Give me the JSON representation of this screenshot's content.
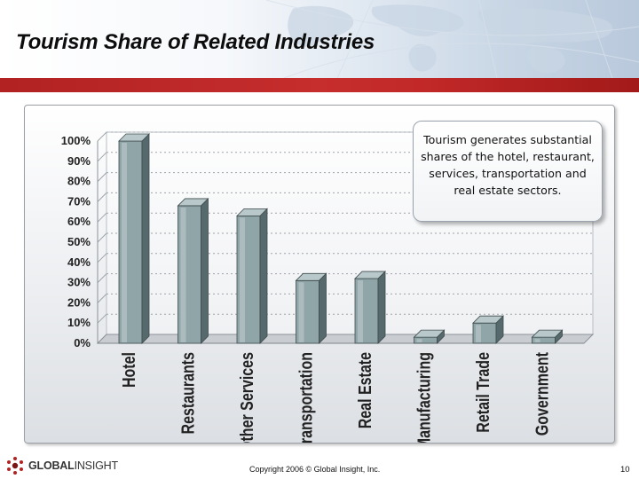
{
  "header": {
    "title": "Tourism Share of Related Industries"
  },
  "callout": {
    "text": "Tourism generates substantial shares of the hotel, restaurant, services, transportation and real estate sectors."
  },
  "footer": {
    "logo_bold": "GLOBAL",
    "logo_light": "INSIGHT",
    "copyright": "Copyright 2006 © Global Insight, Inc.",
    "page_number": "10"
  },
  "colors": {
    "accent_red": "#b22222",
    "bar_fill": "#8fa5a8",
    "bar_dark": "#56696c"
  },
  "chart_data": {
    "type": "bar",
    "categories": [
      "Hotel",
      "Restaurants",
      "Other Services",
      "Transportation",
      "Real Estate",
      "Manufacturing",
      "Retail Trade",
      "Government"
    ],
    "values": [
      100,
      68,
      63,
      31,
      32,
      3,
      10,
      3
    ],
    "yticks": [
      "0%",
      "10%",
      "20%",
      "30%",
      "40%",
      "50%",
      "60%",
      "70%",
      "80%",
      "90%",
      "100%"
    ],
    "ylim": [
      0,
      100
    ],
    "title": "",
    "xlabel": "",
    "ylabel": ""
  }
}
